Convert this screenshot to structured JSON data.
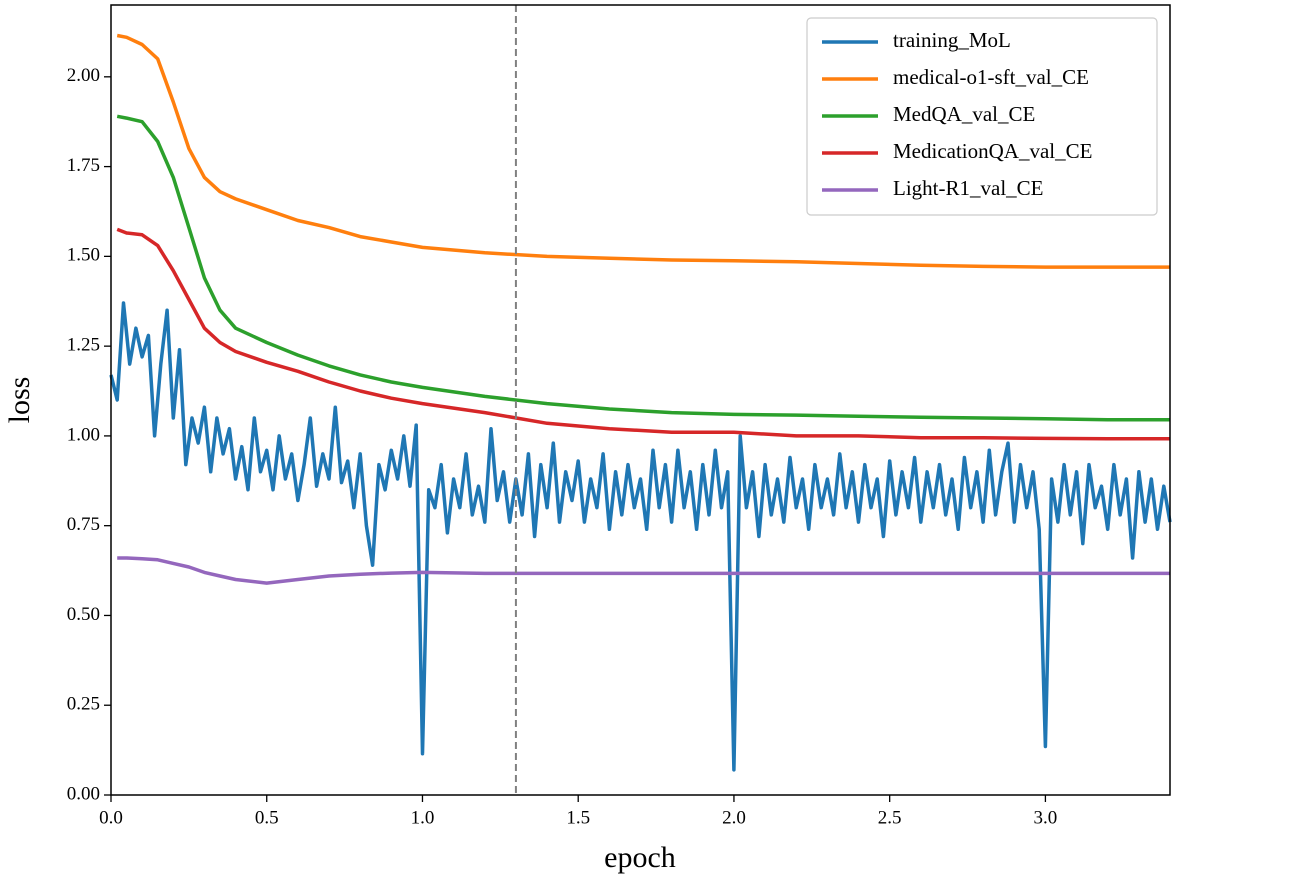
{
  "chart_data": {
    "type": "line",
    "xlabel": "epoch",
    "ylabel": "loss",
    "xlim": [
      0,
      3.4
    ],
    "xticks": [
      {
        "value": 0,
        "label": "0.0"
      },
      0.5,
      {
        "value": 1,
        "label": "1.0"
      },
      1.5,
      {
        "value": 2,
        "label": "2.0"
      },
      2.5,
      {
        "value": 3,
        "label": "3.0"
      }
    ],
    "ylim": [
      0,
      2.2
    ],
    "yticks": [
      {
        "value": 0,
        "label": "0.00"
      },
      0.25,
      {
        "value": 0.5,
        "label": "0.50"
      },
      0.75,
      {
        "value": 1,
        "label": "1.00"
      },
      1.25,
      {
        "value": 1.5,
        "label": "1.50"
      },
      1.75,
      {
        "value": 2,
        "label": "2.00"
      }
    ],
    "grid": false,
    "legend": "upper right",
    "vline": 1.3,
    "series": [
      {
        "name": "training_MoL",
        "color": "#1f77b4",
        "x": [
          0.0,
          0.02,
          0.04,
          0.06,
          0.08,
          0.1,
          0.12,
          0.14,
          0.16,
          0.18,
          0.2,
          0.22,
          0.24,
          0.26,
          0.28,
          0.3,
          0.32,
          0.34,
          0.36,
          0.38,
          0.4,
          0.42,
          0.44,
          0.46,
          0.48,
          0.5,
          0.52,
          0.54,
          0.56,
          0.58,
          0.6,
          0.62,
          0.64,
          0.66,
          0.68,
          0.7,
          0.72,
          0.74,
          0.76,
          0.78,
          0.8,
          0.82,
          0.84,
          0.86,
          0.88,
          0.9,
          0.92,
          0.94,
          0.96,
          0.98,
          1.0,
          1.02,
          1.04,
          1.06,
          1.08,
          1.1,
          1.12,
          1.14,
          1.16,
          1.18,
          1.2,
          1.22,
          1.24,
          1.26,
          1.28,
          1.3,
          1.32,
          1.34,
          1.36,
          1.38,
          1.4,
          1.42,
          1.44,
          1.46,
          1.48,
          1.5,
          1.52,
          1.54,
          1.56,
          1.58,
          1.6,
          1.62,
          1.64,
          1.66,
          1.68,
          1.7,
          1.72,
          1.74,
          1.76,
          1.78,
          1.8,
          1.82,
          1.84,
          1.86,
          1.88,
          1.9,
          1.92,
          1.94,
          1.96,
          1.98,
          2.0,
          2.02,
          2.04,
          2.06,
          2.08,
          2.1,
          2.12,
          2.14,
          2.16,
          2.18,
          2.2,
          2.22,
          2.24,
          2.26,
          2.28,
          2.3,
          2.32,
          2.34,
          2.36,
          2.38,
          2.4,
          2.42,
          2.44,
          2.46,
          2.48,
          2.5,
          2.52,
          2.54,
          2.56,
          2.58,
          2.6,
          2.62,
          2.64,
          2.66,
          2.68,
          2.7,
          2.72,
          2.74,
          2.76,
          2.78,
          2.8,
          2.82,
          2.84,
          2.86,
          2.88,
          2.9,
          2.92,
          2.94,
          2.96,
          2.98,
          3.0,
          3.02,
          3.04,
          3.06,
          3.08,
          3.1,
          3.12,
          3.14,
          3.16,
          3.18,
          3.2,
          3.22,
          3.24,
          3.26,
          3.28,
          3.3,
          3.32,
          3.34,
          3.36,
          3.38,
          3.4
        ],
        "values": [
          1.17,
          1.1,
          1.37,
          1.2,
          1.3,
          1.22,
          1.28,
          1.0,
          1.2,
          1.35,
          1.05,
          1.24,
          0.92,
          1.05,
          0.98,
          1.08,
          0.9,
          1.05,
          0.95,
          1.02,
          0.88,
          0.97,
          0.85,
          1.05,
          0.9,
          0.96,
          0.85,
          1.0,
          0.88,
          0.95,
          0.82,
          0.92,
          1.05,
          0.86,
          0.95,
          0.88,
          1.08,
          0.87,
          0.93,
          0.8,
          0.95,
          0.75,
          0.64,
          0.92,
          0.85,
          0.96,
          0.88,
          1.0,
          0.86,
          1.03,
          0.115,
          0.85,
          0.8,
          0.92,
          0.73,
          0.88,
          0.8,
          0.95,
          0.78,
          0.86,
          0.76,
          1.02,
          0.82,
          0.9,
          0.76,
          0.88,
          0.78,
          0.95,
          0.72,
          0.92,
          0.8,
          0.98,
          0.76,
          0.9,
          0.82,
          0.93,
          0.76,
          0.88,
          0.8,
          0.95,
          0.74,
          0.9,
          0.78,
          0.92,
          0.8,
          0.88,
          0.74,
          0.96,
          0.8,
          0.92,
          0.76,
          0.96,
          0.8,
          0.9,
          0.74,
          0.92,
          0.78,
          0.96,
          0.8,
          0.9,
          0.07,
          1.0,
          0.8,
          0.9,
          0.72,
          0.92,
          0.78,
          0.88,
          0.76,
          0.94,
          0.8,
          0.88,
          0.74,
          0.92,
          0.8,
          0.88,
          0.78,
          0.95,
          0.8,
          0.9,
          0.76,
          0.92,
          0.8,
          0.88,
          0.72,
          0.93,
          0.78,
          0.9,
          0.8,
          0.94,
          0.76,
          0.9,
          0.8,
          0.92,
          0.78,
          0.88,
          0.74,
          0.94,
          0.8,
          0.9,
          0.76,
          0.96,
          0.78,
          0.9,
          0.98,
          0.76,
          0.92,
          0.8,
          0.9,
          0.74,
          0.135,
          0.88,
          0.76,
          0.92,
          0.78,
          0.9,
          0.7,
          0.92,
          0.8,
          0.86,
          0.74,
          0.92,
          0.78,
          0.88,
          0.66,
          0.9,
          0.76,
          0.88,
          0.74,
          0.86,
          0.76
        ]
      },
      {
        "name": "medical-o1-sft_val_CE",
        "color": "#ff7f0e",
        "x": [
          0.02,
          0.05,
          0.1,
          0.15,
          0.2,
          0.25,
          0.3,
          0.35,
          0.4,
          0.5,
          0.6,
          0.7,
          0.8,
          0.9,
          1.0,
          1.2,
          1.4,
          1.6,
          1.8,
          2.0,
          2.2,
          2.4,
          2.6,
          2.8,
          3.0,
          3.2,
          3.4
        ],
        "values": [
          2.115,
          2.11,
          2.09,
          2.05,
          1.93,
          1.8,
          1.72,
          1.68,
          1.66,
          1.63,
          1.6,
          1.58,
          1.555,
          1.54,
          1.525,
          1.51,
          1.5,
          1.495,
          1.49,
          1.488,
          1.485,
          1.48,
          1.475,
          1.472,
          1.47,
          1.47,
          1.47
        ]
      },
      {
        "name": "MedQA_val_CE",
        "color": "#2ca02c",
        "x": [
          0.02,
          0.05,
          0.1,
          0.15,
          0.2,
          0.25,
          0.3,
          0.35,
          0.4,
          0.5,
          0.6,
          0.7,
          0.8,
          0.9,
          1.0,
          1.2,
          1.4,
          1.6,
          1.8,
          2.0,
          2.2,
          2.4,
          2.6,
          2.8,
          3.0,
          3.2,
          3.4
        ],
        "values": [
          1.89,
          1.885,
          1.875,
          1.82,
          1.72,
          1.58,
          1.44,
          1.35,
          1.3,
          1.26,
          1.225,
          1.195,
          1.17,
          1.15,
          1.135,
          1.11,
          1.09,
          1.075,
          1.065,
          1.06,
          1.058,
          1.055,
          1.052,
          1.05,
          1.048,
          1.045,
          1.045
        ]
      },
      {
        "name": "MedicationQA_val_CE",
        "color": "#d62728",
        "x": [
          0.02,
          0.05,
          0.1,
          0.15,
          0.2,
          0.25,
          0.3,
          0.35,
          0.4,
          0.5,
          0.6,
          0.7,
          0.8,
          0.9,
          1.0,
          1.2,
          1.4,
          1.6,
          1.8,
          2.0,
          2.2,
          2.4,
          2.6,
          2.8,
          3.0,
          3.2,
          3.4
        ],
        "values": [
          1.575,
          1.565,
          1.56,
          1.53,
          1.46,
          1.38,
          1.3,
          1.26,
          1.235,
          1.205,
          1.18,
          1.15,
          1.125,
          1.105,
          1.09,
          1.065,
          1.035,
          1.02,
          1.01,
          1.01,
          1.0,
          1.0,
          0.995,
          0.995,
          0.993,
          0.992,
          0.992
        ]
      },
      {
        "name": "Light-R1_val_CE",
        "color": "#9467bd",
        "x": [
          0.02,
          0.05,
          0.1,
          0.15,
          0.2,
          0.25,
          0.3,
          0.35,
          0.4,
          0.5,
          0.6,
          0.7,
          0.8,
          0.9,
          1.0,
          1.2,
          1.4,
          1.6,
          1.8,
          2.0,
          2.2,
          2.4,
          2.6,
          2.8,
          3.0,
          3.2,
          3.4
        ],
        "values": [
          0.66,
          0.66,
          0.658,
          0.655,
          0.645,
          0.635,
          0.62,
          0.61,
          0.6,
          0.59,
          0.6,
          0.61,
          0.615,
          0.618,
          0.62,
          0.617,
          0.617,
          0.617,
          0.617,
          0.617,
          0.617,
          0.617,
          0.617,
          0.617,
          0.617,
          0.617,
          0.617
        ]
      }
    ]
  }
}
